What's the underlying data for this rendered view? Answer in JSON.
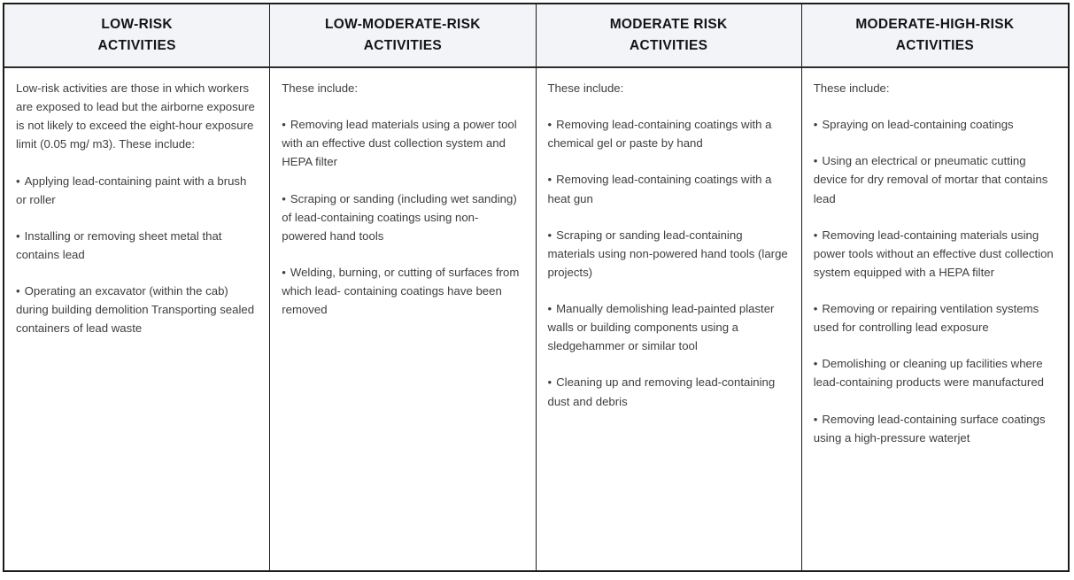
{
  "glyphs": {
    "bullet": "•"
  },
  "colors": {
    "header_bg": "#f3f4f8",
    "outer_border": "#1c1c1c",
    "header_rule": "#2b2b2b",
    "body_text": "#3d3e42",
    "header_text": "#141414"
  },
  "table": {
    "columns": [
      {
        "header": "LOW-RISK\nACTIVITIES",
        "intro": "Low-risk activities are those in which workers are exposed to lead but the airborne exposure is not likely to exceed the eight-hour exposure limit (0.05 mg/ m3). These include:",
        "bullets": [
          "Applying lead-containing paint with a brush or roller",
          "Installing or removing sheet metal that contains lead",
          "Operating an excavator (within the cab) during building demolition Transporting sealed containers of lead waste"
        ]
      },
      {
        "header": "LOW-MODERATE-RISK\nACTIVITIES",
        "intro": "These include:",
        "bullets": [
          "Removing lead materials using a power tool with an effective dust collection system and HEPA filter",
          "Scraping or sanding (including wet sanding) of lead-containing coatings using non-powered hand tools",
          "Welding, burning, or cutting of surfaces from which lead- containing coatings have been removed"
        ]
      },
      {
        "header": "MODERATE RISK\nACTIVITIES",
        "intro": "These include:",
        "bullets": [
          "Removing lead-containing coatings with a chemical gel or paste by hand",
          "Removing lead-containing coatings with a heat gun",
          "Scraping or sanding lead-containing materials using non-powered hand tools (large projects)",
          "Manually demolishing lead-painted plaster walls or building components using a sledgehammer or similar tool",
          "Cleaning up and removing lead-containing dust and debris"
        ]
      },
      {
        "header": "MODERATE-HIGH-RISK\nACTIVITIES",
        "intro": "These include:",
        "bullets": [
          "Spraying on lead-containing coatings",
          "Using an electrical or pneumatic cutting device for dry removal of mortar that contains lead",
          "Removing lead-containing materials using power tools without an effective dust collection system equipped with a HEPA filter",
          "Removing or repairing ventilation systems used for controlling lead exposure",
          "Demolishing or cleaning up facilities where lead-containing products were manufactured",
          "Removing lead-containing surface coatings using a high-pressure waterjet"
        ]
      }
    ]
  }
}
